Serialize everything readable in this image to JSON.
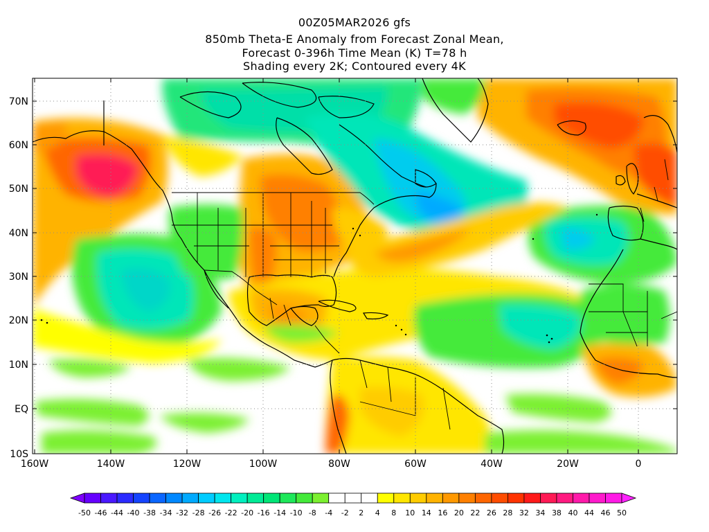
{
  "title": {
    "line1": "00Z05MAR2026 gfs",
    "line2": "850mb Theta-E Anomaly from Forecast Zonal Mean,",
    "line3": "Forecast 0-396h Time Mean (K) T=78 h",
    "line4": "Shading every 2K; Contoured every 4K"
  },
  "map": {
    "lat_labels": [
      "70N",
      "60N",
      "50N",
      "40N",
      "30N",
      "20N",
      "10N",
      "EQ",
      "10S"
    ],
    "lon_labels": [
      "160W",
      "140W",
      "120W",
      "100W",
      "80W",
      "60W",
      "40W",
      "20W",
      "0"
    ],
    "anomaly_fields": [
      {
        "name": "warm-alaska",
        "value": 32
      },
      {
        "name": "warm-central-us",
        "value": 16
      },
      {
        "name": "warm-northeast-atlantic",
        "value": 24
      },
      {
        "name": "warm-west-africa",
        "value": 16
      },
      {
        "name": "cold-canada",
        "value": -22
      },
      {
        "name": "cold-newfoundland",
        "value": -26
      },
      {
        "name": "cold-east-pacific",
        "value": -22
      },
      {
        "name": "cold-central-atlantic",
        "value": -24
      }
    ]
  },
  "colorbar": {
    "labels": [
      "-50",
      "-46",
      "-44",
      "-40",
      "-38",
      "-34",
      "-32",
      "-28",
      "-26",
      "-22",
      "-20",
      "-16",
      "-14",
      "-10",
      "-8",
      "-4",
      "-2",
      "2",
      "4",
      "8",
      "10",
      "14",
      "16",
      "20",
      "22",
      "26",
      "28",
      "32",
      "34",
      "38",
      "40",
      "44",
      "46",
      "50"
    ],
    "colors": [
      "#7f00ff",
      "#6600ff",
      "#4a18ff",
      "#2b2bff",
      "#1544ff",
      "#0a66ff",
      "#0088ff",
      "#00aaff",
      "#00ccff",
      "#00e6ee",
      "#00f0bf",
      "#00eb96",
      "#00e677",
      "#1ee85a",
      "#44ea3a",
      "#7cf030",
      "#ffffff",
      "#ffffff",
      "#ffffff",
      "#ffff00",
      "#ffe600",
      "#ffcc00",
      "#ffb300",
      "#ff9900",
      "#ff8000",
      "#ff6600",
      "#ff4d00",
      "#ff3300",
      "#ff1a1a",
      "#ff1a55",
      "#ff1a80",
      "#ff1aaa",
      "#ff1acc",
      "#ff1ae6",
      "#ff22ff"
    ]
  }
}
